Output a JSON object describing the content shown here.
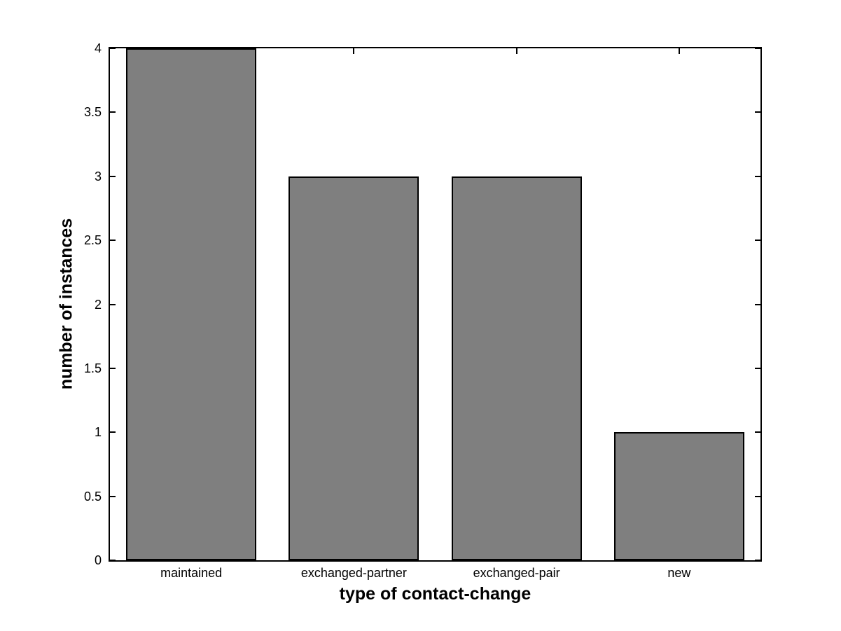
{
  "chart_data": {
    "type": "bar",
    "categories": [
      "maintained",
      "exchanged-partner",
      "exchanged-pair",
      "new"
    ],
    "values": [
      4,
      3,
      3,
      1
    ],
    "xlabel": "type of contact-change",
    "ylabel": "number of instances",
    "ylim": [
      0,
      4
    ],
    "yticks": [
      0,
      0.5,
      1,
      1.5,
      2,
      2.5,
      3,
      3.5,
      4
    ],
    "bar_width_fraction": 0.8,
    "grid": false,
    "box": "on",
    "tick_direction": "in",
    "colors": {
      "bar_fill": "#7F7F7F",
      "bar_edge": "#000000",
      "axis": "#000000",
      "text": "#000000",
      "background": "#FFFFFF"
    }
  }
}
